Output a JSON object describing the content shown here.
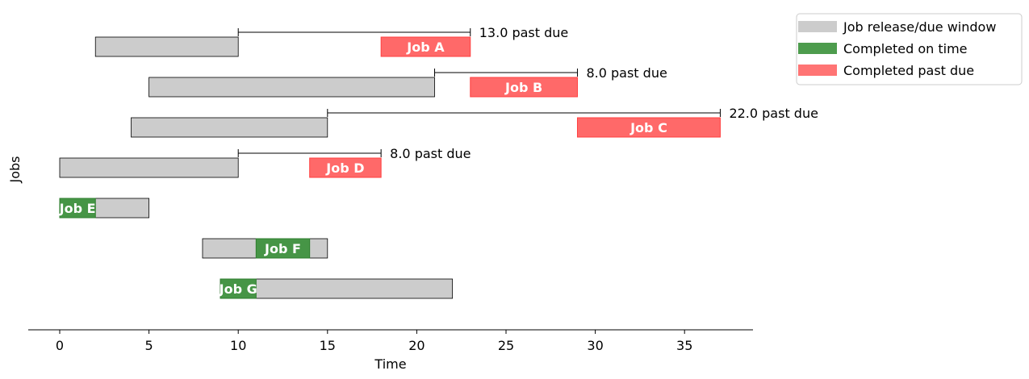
{
  "chart_data": {
    "type": "gantt",
    "xlabel": "Time",
    "ylabel": "Jobs",
    "xlim": [
      -1.8,
      38.8
    ],
    "xticks": [
      0,
      5,
      10,
      15,
      20,
      25,
      30,
      35
    ],
    "colors": {
      "window": "#cccccc",
      "on_time": "#2e8b2e",
      "past_due": "#ff5c5c"
    },
    "legend": {
      "placement": "upper-right-outside",
      "items": [
        {
          "key": "window",
          "label": "Job release/due window"
        },
        {
          "key": "on_time",
          "label": "Completed on time"
        },
        {
          "key": "past_due",
          "label": "Completed past due"
        }
      ]
    },
    "jobs": [
      {
        "name": "Job A",
        "release": 2,
        "due": 10,
        "start": 18,
        "end": 23,
        "status": "past_due",
        "tardiness_label": "13.0 past due"
      },
      {
        "name": "Job B",
        "release": 5,
        "due": 21,
        "start": 23,
        "end": 29,
        "status": "past_due",
        "tardiness_label": "8.0 past due"
      },
      {
        "name": "Job C",
        "release": 4,
        "due": 15,
        "start": 29,
        "end": 37,
        "status": "past_due",
        "tardiness_label": "22.0 past due"
      },
      {
        "name": "Job D",
        "release": 0,
        "due": 10,
        "start": 14,
        "end": 18,
        "status": "past_due",
        "tardiness_label": "8.0 past due"
      },
      {
        "name": "Job E",
        "release": 0,
        "due": 5,
        "start": 0,
        "end": 2,
        "status": "on_time",
        "tardiness_label": ""
      },
      {
        "name": "Job F",
        "release": 8,
        "due": 15,
        "start": 11,
        "end": 14,
        "status": "on_time",
        "tardiness_label": ""
      },
      {
        "name": "Job G",
        "release": 9,
        "due": 22,
        "start": 9,
        "end": 11,
        "status": "on_time",
        "tardiness_label": ""
      }
    ]
  }
}
